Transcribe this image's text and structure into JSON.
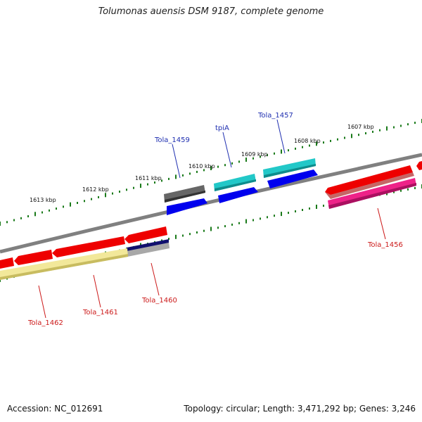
{
  "title": "Tolumonas auensis DSM 9187, complete genome",
  "footer": {
    "accession": "Accession: NC_012691",
    "summary": "Topology: circular; Length: 3,471,292 bp; Genes: 3,246"
  },
  "scale_labels": [
    "1607 kbp",
    "1608 kbp",
    "1609 kbp",
    "1610 kbp",
    "1611 kbp",
    "1612 kbp",
    "1613 kbp"
  ],
  "gene_labels": {
    "Tola_1457": "Tola_1457",
    "tpiA": "tpiA",
    "Tola_1459": "Tola_1459",
    "Tola_1456": "Tola_1456",
    "Tola_1460": "Tola_1460",
    "Tola_1461": "Tola_1461",
    "Tola_1462": "Tola_1462"
  },
  "colors": {
    "forward_label": "#1f2fb0",
    "reverse_label": "#cc1a1a",
    "backbone": "#7a7a7a",
    "ticks": "#1a7a1a",
    "red": "#ee0000",
    "blue": "#0000ee",
    "cyan": "#22c8c8",
    "magenta": "#ee2288",
    "gray": "#666666",
    "navy": "#10106e",
    "yellow": "#f2e89a",
    "silver": "#a8a8a8"
  }
}
